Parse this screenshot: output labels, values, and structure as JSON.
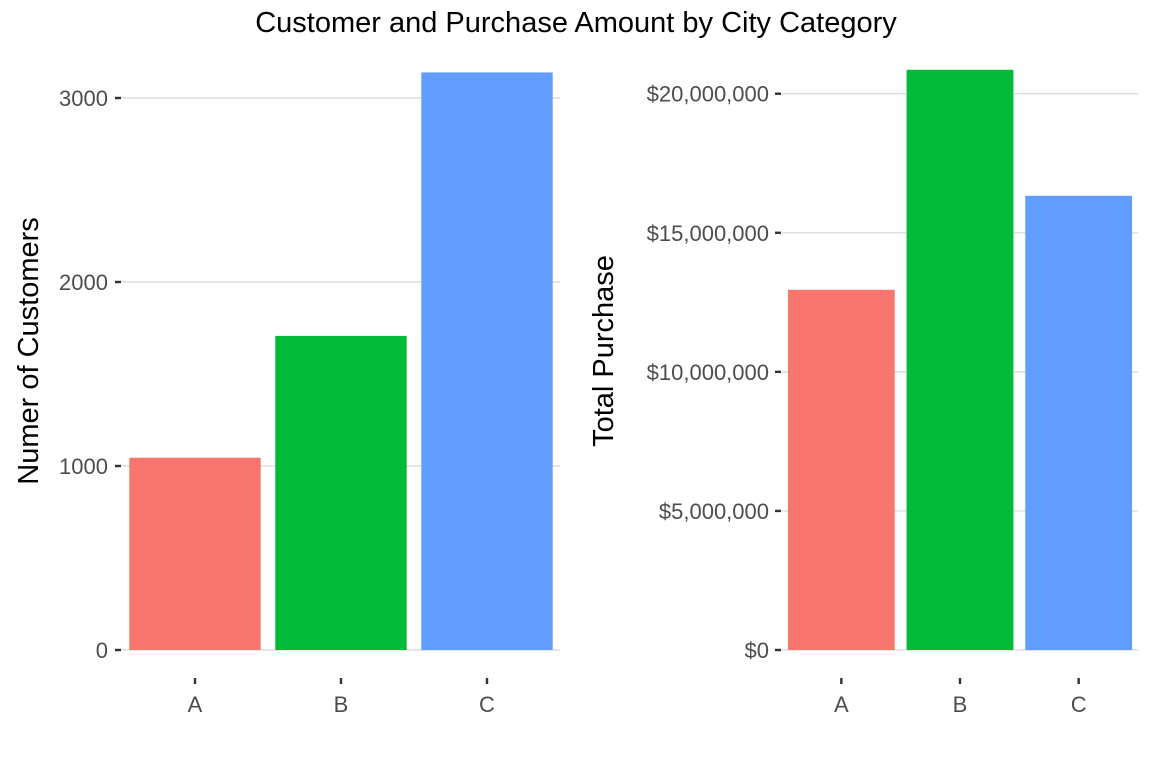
{
  "title": "Customer and Purchase Amount by City Category",
  "chart_data": [
    {
      "type": "bar",
      "title": "",
      "xlabel": "",
      "ylabel": "Numer of Customers",
      "categories": [
        "A",
        "B",
        "C"
      ],
      "values": [
        1045,
        1707,
        3139
      ],
      "colors": [
        "#F8766D",
        "#00BA38",
        "#619CFF"
      ],
      "ylim": [
        0,
        3250
      ],
      "yticks": [
        0,
        1000,
        2000,
        3000
      ],
      "ytick_labels": [
        "0",
        "1000",
        "2000",
        "3000"
      ],
      "grid": true,
      "legend": "none"
    },
    {
      "type": "bar",
      "title": "",
      "xlabel": "",
      "ylabel": "Total Purchase",
      "categories": [
        "A",
        "B",
        "C"
      ],
      "values": [
        12950000,
        20860000,
        16330000
      ],
      "colors": [
        "#F8766D",
        "#00BA38",
        "#619CFF"
      ],
      "ylim": [
        0,
        21500000
      ],
      "yticks": [
        0,
        5000000,
        10000000,
        15000000,
        20000000
      ],
      "ytick_labels": [
        "$0",
        "$5,000,000",
        "$10,000,000",
        "$15,000,000",
        "$20,000,000"
      ],
      "grid": true,
      "legend": "none"
    }
  ]
}
